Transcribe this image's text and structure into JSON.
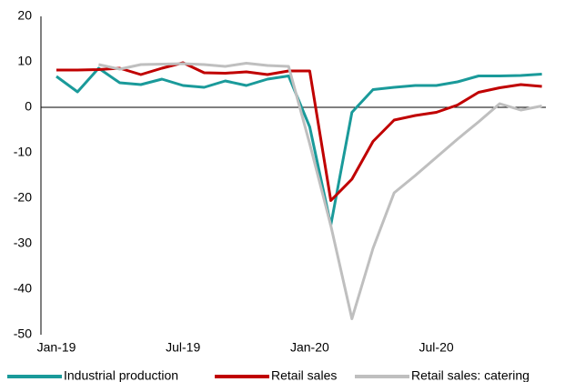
{
  "chart_data": {
    "type": "line",
    "categories": [
      "Jan-19",
      null,
      null,
      null,
      null,
      null,
      "Jul-19",
      null,
      null,
      null,
      null,
      null,
      "Jan-20",
      null,
      null,
      null,
      null,
      null,
      "Jul-20",
      null,
      null,
      null,
      null,
      null
    ],
    "series": [
      {
        "name": "Industrial production",
        "color": "#1a9a9a",
        "values": [
          6.8,
          3.4,
          8.6,
          5.4,
          5.0,
          6.2,
          4.8,
          4.4,
          5.8,
          4.8,
          6.2,
          6.9,
          -4.3,
          -25.9,
          -1.1,
          3.9,
          4.4,
          4.8,
          4.8,
          5.6,
          6.9,
          6.9,
          7.0,
          7.3
        ]
      },
      {
        "name": "Retail sales",
        "color": "#c00000",
        "values": [
          8.2,
          8.2,
          8.3,
          8.6,
          7.2,
          8.6,
          9.8,
          7.6,
          7.5,
          7.8,
          7.2,
          8.0,
          8.0,
          -20.5,
          -15.8,
          -7.5,
          -2.8,
          -1.8,
          -1.1,
          0.5,
          3.3,
          4.3,
          5.0,
          4.6
        ]
      },
      {
        "name": "Retail sales: catering",
        "color": "#bfbfbf",
        "values": [
          null,
          null,
          9.4,
          8.4,
          9.4,
          9.5,
          9.6,
          9.4,
          9.0,
          9.7,
          9.2,
          9.0,
          -8.0,
          -26.0,
          -46.5,
          -31.0,
          -18.8,
          -15.0,
          -11.0,
          -7.0,
          -3.2,
          0.8,
          -0.6,
          0.3
        ]
      }
    ],
    "ylim": [
      -50,
      20
    ],
    "yticks": [
      -50,
      -40,
      -30,
      -20,
      -10,
      0,
      10,
      20
    ]
  }
}
